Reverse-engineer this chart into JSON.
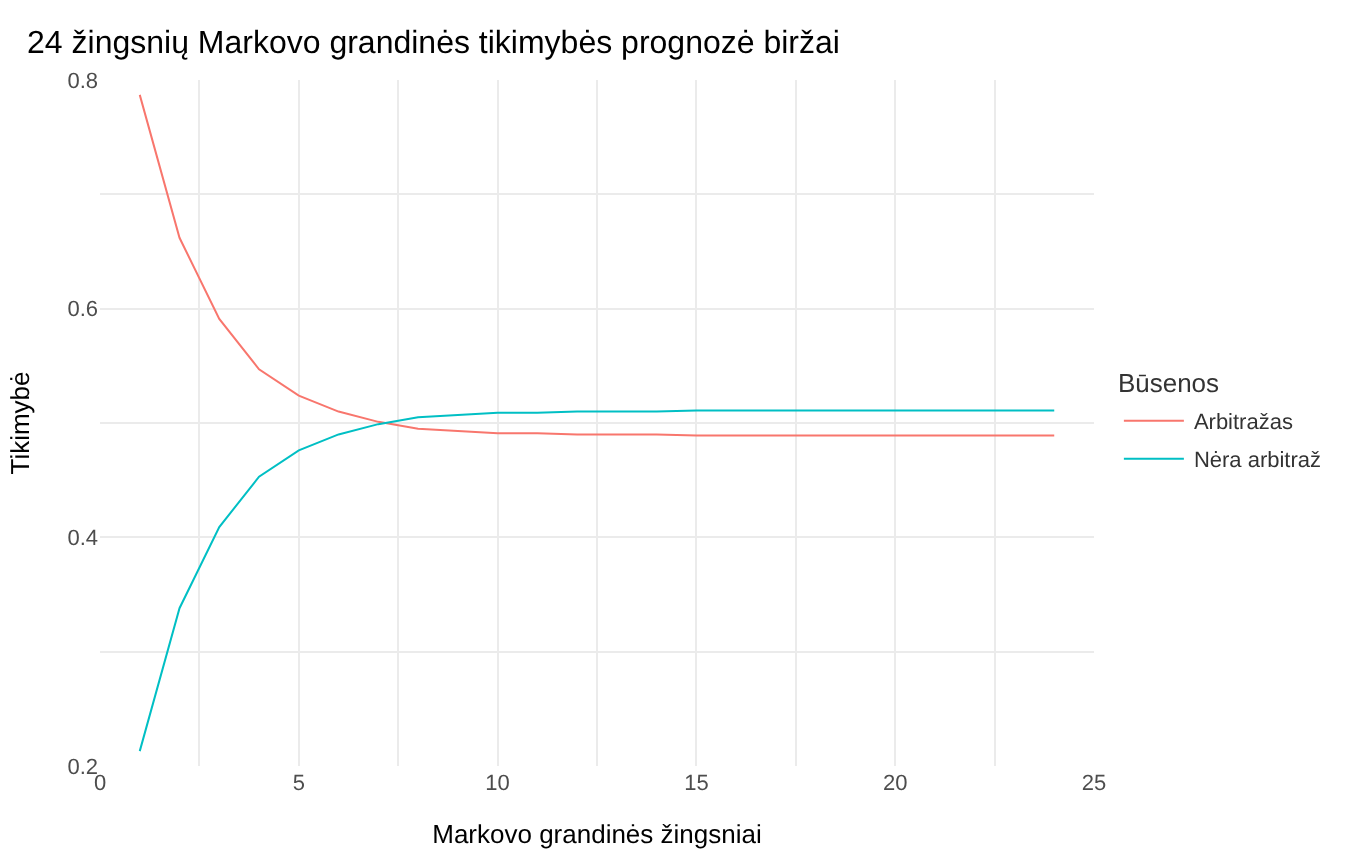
{
  "chart_data": {
    "type": "line",
    "title": "24 žingsnių Markovo grandinės tikimybės prognozė biržai",
    "xlabel": "Markovo grandinės žingsniai",
    "ylabel": "Tikimybė",
    "legend_title": "Būsenos",
    "x": [
      1,
      2,
      3,
      4,
      5,
      6,
      7,
      8,
      9,
      10,
      11,
      12,
      13,
      14,
      15,
      16,
      17,
      18,
      19,
      20,
      21,
      22,
      23,
      24
    ],
    "series": [
      {
        "name": "Arbitražas",
        "color": "#f8766d",
        "values": [
          0.787,
          0.662,
          0.591,
          0.547,
          0.524,
          0.51,
          0.501,
          0.495,
          0.493,
          0.491,
          0.491,
          0.49,
          0.49,
          0.49,
          0.489,
          0.489,
          0.489,
          0.489,
          0.489,
          0.489,
          0.489,
          0.489,
          0.489,
          0.489
        ]
      },
      {
        "name": "Nėra arbitraž",
        "color": "#00bfc4",
        "values": [
          0.213,
          0.338,
          0.409,
          0.453,
          0.476,
          0.49,
          0.499,
          0.505,
          0.507,
          0.509,
          0.509,
          0.51,
          0.51,
          0.51,
          0.511,
          0.511,
          0.511,
          0.511,
          0.511,
          0.511,
          0.511,
          0.511,
          0.511,
          0.511
        ]
      }
    ],
    "xlim": [
      0,
      25
    ],
    "xticks": [
      0,
      {
        "value": 2.5,
        "label": null
      },
      5,
      {
        "value": 7.5,
        "label": null
      },
      10,
      {
        "value": 12.5,
        "label": null
      },
      15,
      {
        "value": 17.5,
        "label": null
      },
      20,
      {
        "value": 22.5,
        "label": null
      },
      25
    ],
    "ylim": [
      0.2,
      0.8
    ],
    "yticks": [
      0.2,
      {
        "value": 0.3,
        "label": null
      },
      0.4,
      {
        "value": 0.5,
        "label": null
      },
      0.6,
      {
        "value": 0.7,
        "label": null
      },
      0.8
    ],
    "grid": true,
    "legend": "right",
    "line_style": "solid",
    "marker": "none"
  }
}
